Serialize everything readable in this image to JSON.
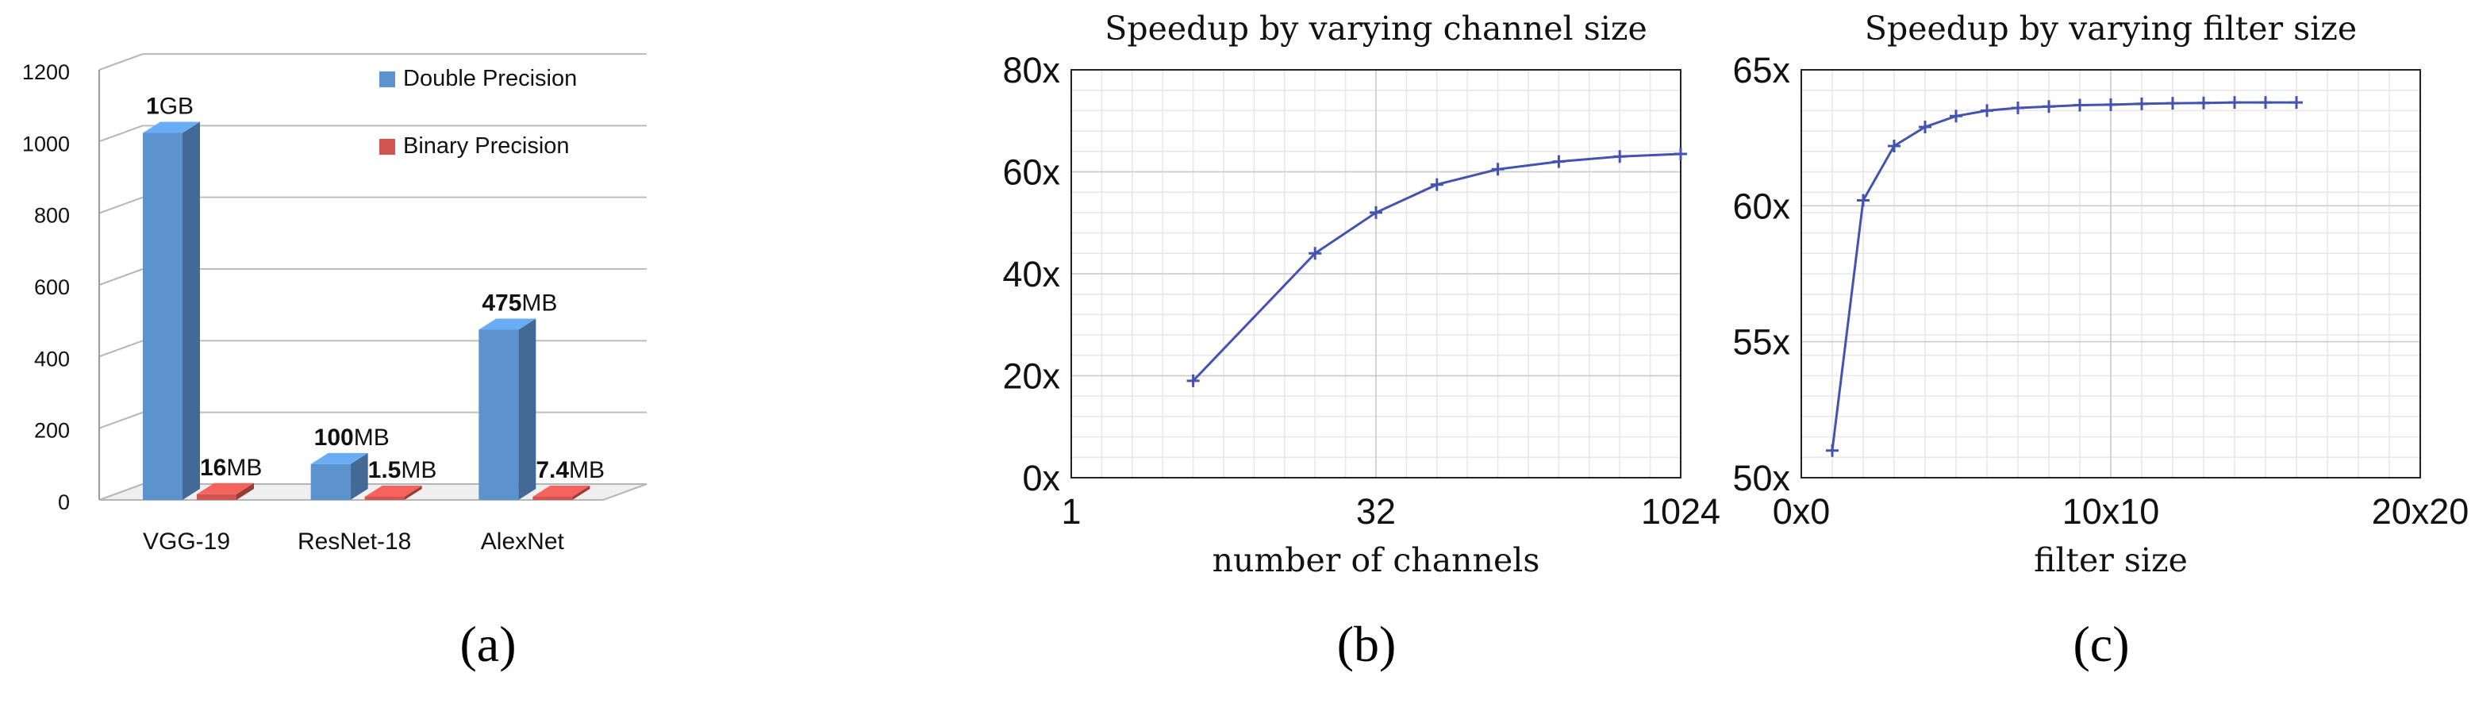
{
  "chart_data": [
    {
      "type": "bar",
      "caption": "(a)",
      "categories": [
        "VGG-19",
        "ResNet-18",
        "AlexNet"
      ],
      "ylim": [
        0,
        1200
      ],
      "yticks": [
        "0",
        "200",
        "400",
        "600",
        "800",
        "1000",
        "1200"
      ],
      "series": [
        {
          "name": "Double Precision",
          "color": "#5b93cf",
          "values": [
            1024,
            100,
            475
          ],
          "labels": [
            {
              "bold": "1",
              "rest": "GB"
            },
            {
              "bold": "100",
              "rest": "MB"
            },
            {
              "bold": "475",
              "rest": "MB"
            }
          ]
        },
        {
          "name": "Binary Precision",
          "color": "#d0554e",
          "values": [
            16,
            1.5,
            7.4
          ],
          "labels": [
            {
              "bold": "16",
              "rest": "MB"
            },
            {
              "bold": "1.5",
              "rest": "MB"
            },
            {
              "bold": "7.4",
              "rest": "MB"
            }
          ]
        }
      ],
      "legend": "top-right",
      "grid": true
    },
    {
      "type": "line",
      "caption": "(b)",
      "title": "Speedup by varying channel size",
      "xlabel": "number of channels",
      "xscale": "log2",
      "xlim": [
        1,
        1024
      ],
      "xticks": [
        "1",
        "32",
        "1024"
      ],
      "ylim": [
        0,
        80
      ],
      "yticks": [
        "0x",
        "20x",
        "40x",
        "60x",
        "80x"
      ],
      "x": [
        4,
        16,
        32,
        64,
        128,
        256,
        512,
        1024
      ],
      "y": [
        19,
        44,
        52,
        57.5,
        60.5,
        62,
        63,
        63.5
      ],
      "color": "#4453b0",
      "grid": true
    },
    {
      "type": "line",
      "caption": "(c)",
      "title": "Speedup by varying filter size",
      "xlabel": "filter size",
      "xlim": [
        0,
        20
      ],
      "xticks": [
        "0x0",
        "10x10",
        "20x20"
      ],
      "ylim": [
        50,
        65
      ],
      "yticks": [
        "50x",
        "55x",
        "60x",
        "65x"
      ],
      "x": [
        1,
        2,
        3,
        4,
        5,
        6,
        7,
        8,
        9,
        10,
        11,
        12,
        13,
        14,
        15,
        16
      ],
      "y": [
        51,
        60.2,
        62.2,
        62.9,
        63.3,
        63.5,
        63.6,
        63.65,
        63.7,
        63.72,
        63.75,
        63.77,
        63.78,
        63.8,
        63.8,
        63.8
      ],
      "color": "#4453b0",
      "grid": true
    }
  ]
}
